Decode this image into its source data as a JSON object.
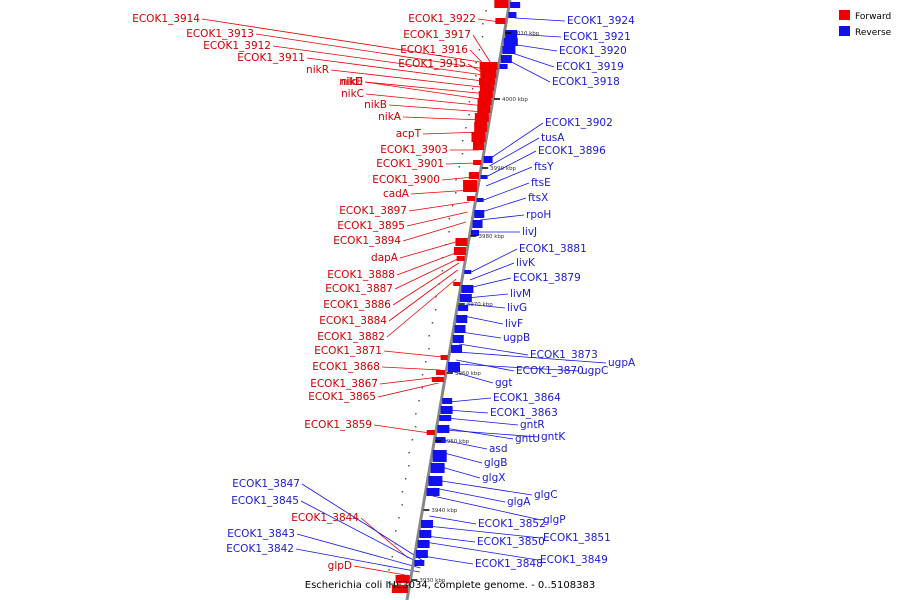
{
  "caption": "Escherichia coli IHE3034, complete genome. - 0..5108383",
  "legend": [
    {
      "label": "Forward",
      "color": "#ee0000"
    },
    {
      "label": "Reverse",
      "color": "#1111ee"
    }
  ],
  "colors": {
    "forward": "#ee0000",
    "reverse": "#1111ee",
    "backbone": "#888888"
  },
  "ticks": [
    "4010 kbp",
    "4000 kbp",
    "3990 kbp",
    "3980 kbp",
    "3970 kbp",
    "3960 kbp",
    "3950 kbp",
    "3940 kbp",
    "3930 kbp"
  ],
  "forward_labels": [
    "ECOK1_3914",
    "ECOK1_3913",
    "ECOK1_3912",
    "ECOK1_3911",
    "nikR",
    "nikD",
    "nikE",
    "nikC",
    "nikB",
    "nikA",
    "acpT",
    "ECOK1_3903",
    "ECOK1_3901",
    "ECOK1_3900",
    "cadA",
    "ECOK1_3897",
    "ECOK1_3895",
    "ECOK1_3894",
    "dapA",
    "ECOK1_3888",
    "ECOK1_3887",
    "ECOK1_3886",
    "ECOK1_3884",
    "ECOK1_3882",
    "ECOK1_3871",
    "ECOK1_3868",
    "ECOK1_3867",
    "ECOK1_3865",
    "ECOK1_3859",
    "ECOK1_3844",
    "glpD",
    "ECOK1_3922",
    "ECOK1_3917",
    "ECOK1_3916",
    "ECOK1_3915"
  ],
  "reverse_labels": [
    "ECOK1_3924",
    "ECOK1_3921",
    "ECOK1_3920",
    "ECOK1_3919",
    "ECOK1_3918",
    "ECOK1_3902",
    "tusA",
    "ECOK1_3896",
    "ftsY",
    "ftsE",
    "ftsX",
    "rpoH",
    "livJ",
    "ECOK1_3881",
    "livK",
    "ECOK1_3879",
    "livM",
    "livG",
    "livF",
    "ugpB",
    "ECOK1_3873",
    "ugpA",
    "ECOK1_3870",
    "ugpC",
    "ggt",
    "ECOK1_3864",
    "ECOK1_3863",
    "gntR",
    "gntU",
    "gntK",
    "asd",
    "glgB",
    "glgX",
    "glgC",
    "glgA",
    "glgP",
    "ECOK1_3852",
    "ECOK1_3851",
    "ECOK1_3850",
    "ECOK1_3849",
    "ECOK1_3848",
    "ECOK1_3847",
    "ECOK1_3845",
    "ECOK1_3843",
    "ECOK1_3842"
  ]
}
